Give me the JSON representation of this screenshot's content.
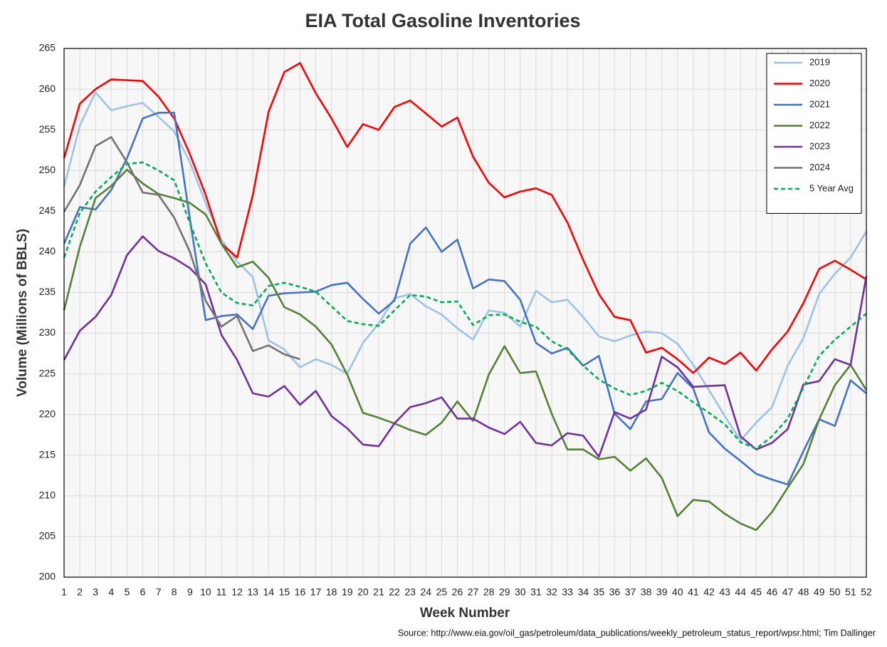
{
  "chart_data": {
    "type": "line",
    "title": "EIA Total Gasoline Inventories",
    "xlabel": "Week Number",
    "ylabel": "Volume (Millions of BBLS)",
    "source": "Source: http://www.eia.gov/oil_gas/petroleum/data_publications/weekly_petroleum_status_report/wpsr.html; Tim Dallinger",
    "x": [
      1,
      2,
      3,
      4,
      5,
      6,
      7,
      8,
      9,
      10,
      11,
      12,
      13,
      14,
      15,
      16,
      17,
      18,
      19,
      20,
      21,
      22,
      23,
      24,
      25,
      26,
      27,
      28,
      29,
      30,
      31,
      32,
      33,
      34,
      35,
      36,
      37,
      38,
      39,
      40,
      41,
      42,
      43,
      44,
      45,
      46,
      47,
      48,
      49,
      50,
      51,
      52
    ],
    "xlim": [
      1,
      52
    ],
    "xticks": [
      1,
      2,
      3,
      4,
      5,
      6,
      7,
      8,
      9,
      10,
      11,
      12,
      13,
      14,
      15,
      16,
      17,
      18,
      19,
      20,
      21,
      22,
      23,
      24,
      25,
      26,
      27,
      28,
      29,
      30,
      31,
      32,
      33,
      34,
      35,
      36,
      37,
      38,
      39,
      40,
      41,
      42,
      43,
      44,
      45,
      46,
      47,
      48,
      49,
      50,
      51,
      52
    ],
    "ylim": [
      200,
      265
    ],
    "yticks": [
      200,
      205,
      210,
      215,
      220,
      225,
      230,
      235,
      240,
      245,
      250,
      255,
      260,
      265
    ],
    "grid": true,
    "legend": "upper right",
    "series": [
      {
        "name": "2019",
        "color": "#9dc3e6",
        "values": [
          248,
          255.5,
          259.6,
          257.4,
          257.9,
          258.3,
          256.6,
          254.8,
          251,
          246,
          241.5,
          238.8,
          236.9,
          229.1,
          228,
          225.8,
          226.8,
          226.1,
          225,
          228.8,
          231.2,
          234.3,
          234.8,
          233.3,
          232.3,
          230.6,
          229.2,
          232.8,
          232.5,
          230.8,
          235.2,
          233.8,
          234.1,
          232,
          229.6,
          229,
          229.7,
          230.2,
          230,
          228.7,
          226.1,
          223,
          219.8,
          216.8,
          219,
          220.9,
          226,
          229.4,
          234.8,
          237.3,
          239.3,
          242.5
        ]
      },
      {
        "name": "2020",
        "color": "#ff0000",
        "values": [
          251.5,
          258.2,
          260,
          261.2,
          261.1,
          261,
          259.1,
          256.4,
          252,
          247,
          241,
          239.3,
          247,
          257.2,
          262.1,
          263.2,
          259.5,
          256.4,
          252.9,
          255.7,
          255,
          257.8,
          258.6,
          257,
          255.4,
          256.5,
          251.7,
          248.5,
          246.7,
          247.4,
          247.8,
          247,
          243.6,
          239,
          234.8,
          232,
          231.6,
          227.6,
          228.2,
          226.8,
          225.1,
          227,
          226.2,
          227.6,
          225.4,
          228,
          230.2,
          233.7,
          237.9,
          238.9,
          237.8,
          236.6
        ]
      },
      {
        "name": "2021",
        "color": "#4472c4",
        "values": [
          241,
          245.5,
          245.2,
          247.6,
          251.5,
          256.4,
          257.1,
          257.1,
          244,
          231.6,
          232.1,
          232.3,
          230.5,
          234.6,
          234.9,
          235,
          235.1,
          235.9,
          236.2,
          234.2,
          232.4,
          234,
          241,
          243,
          240,
          241.5,
          235.5,
          236.6,
          236.4,
          234.1,
          228.8,
          227.5,
          228.2,
          226,
          227.2,
          220.1,
          218.2,
          221.6,
          221.9,
          225.1,
          223.2,
          217.8,
          215.8,
          214.3,
          212.7,
          212,
          211.4,
          215.5,
          219.4,
          218.6,
          224.2,
          222.6
        ]
      },
      {
        "name": "2022",
        "color": "#548235",
        "values": [
          232.8,
          240.6,
          246.6,
          248.1,
          250.1,
          248.4,
          247.1,
          246.6,
          246,
          244.6,
          241,
          238.1,
          238.8,
          236.8,
          233.2,
          232.3,
          230.8,
          228.6,
          224.9,
          220.2,
          219.6,
          218.9,
          218.1,
          217.5,
          219,
          221.6,
          219.2,
          224.9,
          228.4,
          225.1,
          225.3,
          220.1,
          215.7,
          215.7,
          214.5,
          214.8,
          213.1,
          214.6,
          212.2,
          207.5,
          209.5,
          209.3,
          207.8,
          206.6,
          205.8,
          208,
          211,
          213.9,
          219.4,
          223.6,
          226.1,
          223
        ]
      },
      {
        "name": "2023",
        "color": "#7030a0",
        "values": [
          226.7,
          230.3,
          232,
          234.7,
          239.6,
          241.9,
          240.1,
          239.2,
          238,
          236,
          229.8,
          226.7,
          222.6,
          222.2,
          223.5,
          221.2,
          222.9,
          219.8,
          218.3,
          216.3,
          216.1,
          218.9,
          220.9,
          221.4,
          222.1,
          219.5,
          219.5,
          218.4,
          217.6,
          219.1,
          216.5,
          216.2,
          217.7,
          217.4,
          214.8,
          220.3,
          219.5,
          220.6,
          227.1,
          225.8,
          223.4,
          223.5,
          223.6,
          217.3,
          215.7,
          216.5,
          218.2,
          223.7,
          224.1,
          226.8,
          226.1,
          237
        ]
      },
      {
        "name": "2024",
        "color": "#767171",
        "values": [
          244.9,
          248.2,
          253,
          254.1,
          251,
          247.3,
          247,
          244.2,
          240,
          234,
          230.8,
          232.1,
          227.8,
          228.5,
          227.4,
          226.8,
          null,
          null,
          null,
          null,
          null,
          null,
          null,
          null,
          null,
          null,
          null,
          null,
          null,
          null,
          null,
          null,
          null,
          null,
          null,
          null,
          null,
          null,
          null,
          null,
          null,
          null,
          null,
          null,
          null,
          null,
          null,
          null,
          null,
          null,
          null,
          null
        ]
      },
      {
        "name": "5 Year Avg",
        "color": "#00b050",
        "style": "dashed",
        "values": [
          239.3,
          244.8,
          247.4,
          249.2,
          250.8,
          251,
          250,
          248.8,
          243.5,
          238.6,
          235,
          233.7,
          233.4,
          235.8,
          236.2,
          235.7,
          235.1,
          233.3,
          231.5,
          231.1,
          230.9,
          232.8,
          234.7,
          234.5,
          233.8,
          233.9,
          231,
          232.2,
          232.3,
          231.4,
          230.8,
          229,
          228,
          226,
          224.3,
          223.2,
          222.4,
          222.9,
          223.9,
          222.9,
          221.5,
          220.2,
          218.8,
          216.6,
          215.8,
          217.3,
          219.5,
          223.3,
          227.2,
          229.2,
          230.8,
          232.4
        ]
      }
    ]
  }
}
